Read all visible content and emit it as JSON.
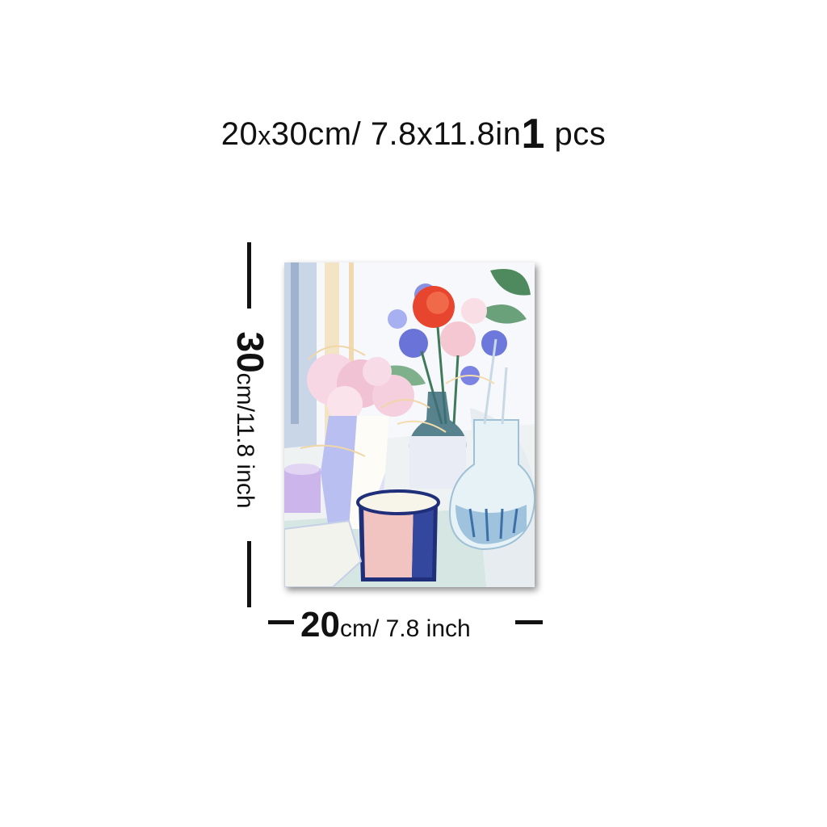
{
  "headline": {
    "size_cm": "20",
    "size_x": "x",
    "size_cm2": "30cm/",
    "size_in": "7.8x11.8in",
    "qty_num": "1",
    "qty_unit": "pcs"
  },
  "height_label": {
    "num": "30",
    "unit": "cm/11.8 inch"
  },
  "width_label": {
    "num": "20",
    "unit": "cm/ 7.8 inch"
  },
  "poster": {
    "subject": "floral-still-life-painting"
  }
}
